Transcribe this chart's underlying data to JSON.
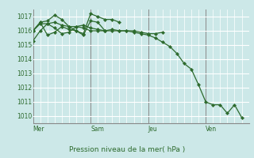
{
  "bg_color": "#cce8e8",
  "grid_color": "#ffffff",
  "line_color": "#2d6a2d",
  "marker_color": "#2d6a2d",
  "title": "Pression niveau de la mer( hPa )",
  "ylim": [
    1009.5,
    1017.5
  ],
  "yticks": [
    1010,
    1011,
    1012,
    1013,
    1014,
    1015,
    1016,
    1017
  ],
  "day_labels": [
    "Mer",
    "Sam",
    "Jeu",
    "Ven"
  ],
  "day_line_x": [
    0,
    24,
    48,
    72
  ],
  "xlim": [
    0,
    90
  ],
  "series": [
    {
      "x": [
        0,
        3,
        6,
        9,
        12,
        15,
        18,
        21,
        24,
        27,
        30,
        33,
        36,
        39,
        42,
        45,
        48,
        51,
        54,
        57,
        60,
        63,
        66,
        69,
        72,
        75,
        78,
        81,
        84,
        87
      ],
      "y": [
        1015.3,
        1016.0,
        1016.5,
        1016.2,
        1015.8,
        1015.9,
        1016.3,
        1016.4,
        1016.2,
        1016.1,
        1016.0,
        1016.1,
        1016.0,
        1016.0,
        1015.9,
        1015.8,
        1015.7,
        1015.5,
        1015.2,
        1014.9,
        1014.4,
        1013.7,
        1013.3,
        1012.2,
        1011.0,
        1010.8,
        1010.8,
        1010.2,
        1010.8,
        1009.9
      ]
    },
    {
      "x": [
        0,
        3,
        6,
        9,
        12,
        15,
        18,
        21,
        24,
        27,
        30,
        33,
        36,
        39,
        42,
        45,
        48,
        51,
        54
      ],
      "y": [
        1016.0,
        1016.5,
        1016.5,
        1016.6,
        1016.4,
        1016.3,
        1016.3,
        1016.2,
        1016.0,
        1016.0,
        1016.0,
        1016.0,
        1016.0,
        1016.0,
        1016.0,
        1015.9,
        1015.8,
        1015.8,
        1015.9
      ]
    },
    {
      "x": [
        0,
        3,
        6,
        9,
        12,
        15,
        18,
        21,
        24,
        27,
        30,
        33,
        36
      ],
      "y": [
        1016.0,
        1016.6,
        1016.7,
        1017.1,
        1016.8,
        1016.3,
        1016.0,
        1015.8,
        1017.2,
        1017.0,
        1016.8,
        1016.8,
        1016.6
      ]
    },
    {
      "x": [
        0,
        3,
        6,
        9,
        12,
        15,
        18,
        21,
        24,
        27,
        30
      ],
      "y": [
        1016.0,
        1016.6,
        1015.7,
        1015.9,
        1016.3,
        1016.1,
        1016.0,
        1015.7,
        1016.7,
        1016.6,
        1016.0
      ]
    }
  ]
}
